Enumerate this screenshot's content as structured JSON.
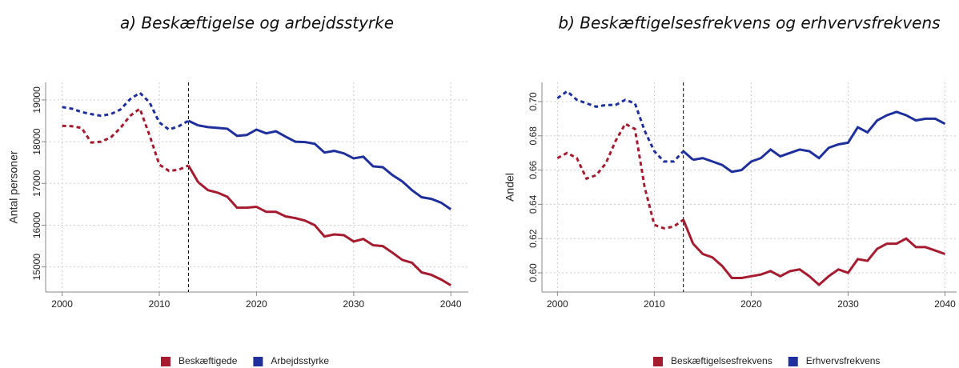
{
  "chart_data": [
    {
      "type": "line",
      "title": "a) Beskæftigelse og arbejdsstyrke",
      "ylabel": "Antal personer",
      "vline": 2013,
      "grid": true,
      "x": [
        2000,
        2001,
        2002,
        2003,
        2004,
        2005,
        2006,
        2007,
        2008,
        2009,
        2010,
        2011,
        2012,
        2013,
        2014,
        2015,
        2016,
        2017,
        2018,
        2019,
        2020,
        2021,
        2022,
        2023,
        2024,
        2025,
        2026,
        2027,
        2028,
        2029,
        2030,
        2031,
        2032,
        2033,
        2034,
        2035,
        2036,
        2037,
        2038,
        2039,
        2040
      ],
      "xlim": [
        1998.3,
        2041.8
      ],
      "xticks": [
        2000,
        2010,
        2020,
        2030,
        2040
      ],
      "ylim": [
        14400,
        19420
      ],
      "yticks": [
        15000,
        16000,
        17000,
        18000,
        19000
      ],
      "series": [
        {
          "name": "Beskæftigede",
          "color": "#a51c30",
          "values": [
            18380,
            18370,
            18330,
            17980,
            18000,
            18100,
            18330,
            18620,
            18790,
            18150,
            17450,
            17300,
            17330,
            17430,
            17030,
            16840,
            16780,
            16680,
            16420,
            16420,
            16440,
            16320,
            16320,
            16210,
            16170,
            16110,
            16000,
            15730,
            15780,
            15760,
            15610,
            15670,
            15520,
            15500,
            15340,
            15170,
            15100,
            14870,
            14810,
            14700,
            14560
          ]
        },
        {
          "name": "Arbejdsstyrke",
          "color": "#1f2f9c",
          "values": [
            18830,
            18790,
            18710,
            18660,
            18620,
            18660,
            18770,
            19020,
            19170,
            18940,
            18460,
            18290,
            18370,
            18500,
            18390,
            18350,
            18330,
            18310,
            18140,
            18160,
            18290,
            18200,
            18250,
            18120,
            18000,
            17990,
            17950,
            17740,
            17780,
            17720,
            17600,
            17640,
            17410,
            17390,
            17200,
            17050,
            16840,
            16670,
            16630,
            16540,
            16380
          ]
        }
      ]
    },
    {
      "type": "line",
      "title": "b) Beskæftigelsesfrekvens og erhvervsfrekvens",
      "ylabel": "Andel",
      "vline": 2013,
      "grid": true,
      "x": [
        2000,
        2001,
        2002,
        2003,
        2004,
        2005,
        2006,
        2007,
        2008,
        2009,
        2010,
        2011,
        2012,
        2013,
        2014,
        2015,
        2016,
        2017,
        2018,
        2019,
        2020,
        2021,
        2022,
        2023,
        2024,
        2025,
        2026,
        2027,
        2028,
        2029,
        2030,
        2031,
        2032,
        2033,
        2034,
        2035,
        2036,
        2037,
        2038,
        2039,
        2040
      ],
      "xlim": [
        1998.4,
        2041.2
      ],
      "xticks": [
        2000,
        2010,
        2020,
        2030,
        2040
      ],
      "ylim": [
        0.5888,
        0.7112
      ],
      "yticks": [
        {
          "value": 0.6,
          "label": "0.60"
        },
        0.62,
        0.64,
        0.66,
        0.68,
        {
          "value": 0.7,
          "label": "0.70"
        }
      ],
      "series": [
        {
          "name": "Beskæftigelsesfrekvens",
          "color": "#a51c30",
          "values": [
            0.667,
            0.67,
            0.667,
            0.655,
            0.657,
            0.664,
            0.677,
            0.687,
            0.684,
            0.65,
            0.628,
            0.626,
            0.627,
            0.631,
            0.617,
            0.611,
            0.609,
            0.604,
            0.597,
            0.597,
            0.598,
            0.599,
            0.601,
            0.598,
            0.601,
            0.602,
            0.598,
            0.593,
            0.598,
            0.602,
            0.6,
            0.608,
            0.607,
            0.614,
            0.617,
            0.617,
            0.62,
            0.615,
            0.615,
            0.613,
            0.611
          ]
        },
        {
          "name": "Erhvervsfrekvens",
          "color": "#1f2f9c",
          "values": [
            0.702,
            0.706,
            0.701,
            0.699,
            0.697,
            0.698,
            0.698,
            0.701,
            0.699,
            0.683,
            0.671,
            0.665,
            0.665,
            0.671,
            0.666,
            0.667,
            0.665,
            0.663,
            0.659,
            0.66,
            0.665,
            0.667,
            0.672,
            0.668,
            0.67,
            0.672,
            0.671,
            0.667,
            0.673,
            0.675,
            0.676,
            0.685,
            0.682,
            0.689,
            0.692,
            0.694,
            0.692,
            0.689,
            0.69,
            0.69,
            0.687
          ]
        }
      ]
    }
  ]
}
